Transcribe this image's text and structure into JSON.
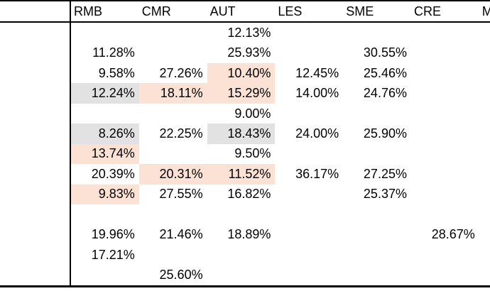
{
  "table": {
    "corner_label": "",
    "columns": [
      "RMB",
      "CMR",
      "AUT",
      "LES",
      "SME",
      "CRE",
      "M"
    ],
    "rows": [
      {
        "cells": [
          {
            "v": ""
          },
          {
            "v": ""
          },
          {
            "v": "12.13%"
          },
          {
            "v": ""
          },
          {
            "v": ""
          },
          {
            "v": ""
          },
          {
            "v": ""
          }
        ]
      },
      {
        "cells": [
          {
            "v": "11.28%"
          },
          {
            "v": ""
          },
          {
            "v": "25.93%"
          },
          {
            "v": ""
          },
          {
            "v": "30.55%"
          },
          {
            "v": ""
          },
          {
            "v": ""
          }
        ]
      },
      {
        "cells": [
          {
            "v": "9.58%"
          },
          {
            "v": "27.26%"
          },
          {
            "v": "10.40%",
            "bg": "peach"
          },
          {
            "v": "12.45%"
          },
          {
            "v": "25.46%"
          },
          {
            "v": ""
          },
          {
            "v": ""
          }
        ]
      },
      {
        "cells": [
          {
            "v": "12.24%",
            "bg": "gray"
          },
          {
            "v": "18.11%",
            "bg": "peach"
          },
          {
            "v": "15.29%",
            "bg": "peach"
          },
          {
            "v": "14.00%"
          },
          {
            "v": "24.76%"
          },
          {
            "v": ""
          },
          {
            "v": ""
          }
        ]
      },
      {
        "cells": [
          {
            "v": ""
          },
          {
            "v": ""
          },
          {
            "v": "9.00%"
          },
          {
            "v": ""
          },
          {
            "v": ""
          },
          {
            "v": ""
          },
          {
            "v": ""
          }
        ]
      },
      {
        "cells": [
          {
            "v": "8.26%",
            "bg": "gray"
          },
          {
            "v": "22.25%"
          },
          {
            "v": "18.43%",
            "bg": "gray"
          },
          {
            "v": "24.00%"
          },
          {
            "v": "25.90%"
          },
          {
            "v": ""
          },
          {
            "v": ""
          }
        ]
      },
      {
        "cells": [
          {
            "v": "13.74%",
            "bg": "peach"
          },
          {
            "v": ""
          },
          {
            "v": "9.50%"
          },
          {
            "v": ""
          },
          {
            "v": ""
          },
          {
            "v": ""
          },
          {
            "v": ""
          }
        ]
      },
      {
        "cells": [
          {
            "v": "20.39%"
          },
          {
            "v": "20.31%",
            "bg": "peach"
          },
          {
            "v": "11.52%",
            "bg": "peach"
          },
          {
            "v": "36.17%"
          },
          {
            "v": "27.25%"
          },
          {
            "v": ""
          },
          {
            "v": ""
          }
        ]
      },
      {
        "cells": [
          {
            "v": "9.83%",
            "bg": "peach"
          },
          {
            "v": "27.55%"
          },
          {
            "v": "16.82%"
          },
          {
            "v": ""
          },
          {
            "v": "25.37%"
          },
          {
            "v": ""
          },
          {
            "v": ""
          }
        ]
      },
      {
        "cells": [
          {
            "v": ""
          },
          {
            "v": ""
          },
          {
            "v": ""
          },
          {
            "v": ""
          },
          {
            "v": ""
          },
          {
            "v": ""
          },
          {
            "v": ""
          }
        ]
      },
      {
        "cells": [
          {
            "v": "19.96%"
          },
          {
            "v": "21.46%"
          },
          {
            "v": "18.89%"
          },
          {
            "v": ""
          },
          {
            "v": ""
          },
          {
            "v": "28.67%"
          },
          {
            "v": ""
          }
        ]
      },
      {
        "cells": [
          {
            "v": "17.21%"
          },
          {
            "v": ""
          },
          {
            "v": ""
          },
          {
            "v": ""
          },
          {
            "v": ""
          },
          {
            "v": ""
          },
          {
            "v": ""
          }
        ]
      },
      {
        "cells": [
          {
            "v": ""
          },
          {
            "v": "25.60%"
          },
          {
            "v": ""
          },
          {
            "v": ""
          },
          {
            "v": ""
          },
          {
            "v": ""
          },
          {
            "v": ""
          }
        ]
      }
    ]
  },
  "colors": {
    "highlight_peach": "#fbe2d5",
    "highlight_gray": "#e2e2e2",
    "border": "#000000",
    "background": "#ffffff",
    "text": "#000000"
  }
}
